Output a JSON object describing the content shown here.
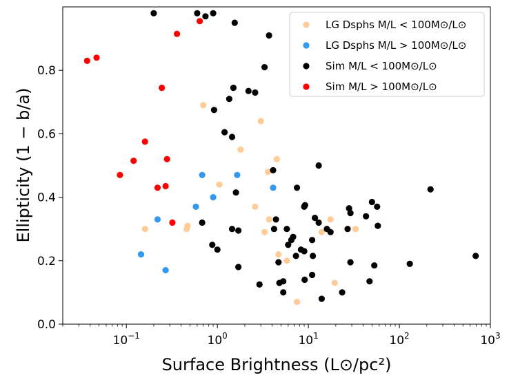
{
  "chart_data": {
    "type": "scatter",
    "xlabel": "Surface Brightness (L⊙/pc²)",
    "ylabel": "Ellipticity (1 − b/a)",
    "xscale": "log",
    "xlim": [
      0.02,
      1000
    ],
    "ylim": [
      0,
      1
    ],
    "x_ticks": [
      {
        "value": 0.1,
        "base": "10",
        "exp": "−1"
      },
      {
        "value": 1,
        "base": "10",
        "exp": "0"
      },
      {
        "value": 10,
        "base": "10",
        "exp": "1"
      },
      {
        "value": 100,
        "base": "10",
        "exp": "2"
      },
      {
        "value": 1000,
        "base": "10",
        "exp": "3"
      }
    ],
    "y_ticks": [
      {
        "value": 0.0,
        "label": "0.0"
      },
      {
        "value": 0.2,
        "label": "0.2"
      },
      {
        "value": 0.4,
        "label": "0.4"
      },
      {
        "value": 0.6,
        "label": "0.6"
      },
      {
        "value": 0.8,
        "label": "0.8"
      }
    ],
    "grid": false,
    "legend_position": "top-right",
    "series": [
      {
        "name": "LG Dsphs M/L < 100M⊙/L⊙",
        "color": "#ffcc99",
        "points": [
          [
            0.16,
            0.3
          ],
          [
            0.46,
            0.3
          ],
          [
            0.47,
            0.31
          ],
          [
            0.7,
            0.69
          ],
          [
            1.05,
            0.44
          ],
          [
            1.8,
            0.55
          ],
          [
            2.6,
            0.37
          ],
          [
            3.0,
            0.64
          ],
          [
            3.3,
            0.29
          ],
          [
            3.6,
            0.48
          ],
          [
            3.7,
            0.33
          ],
          [
            4.5,
            0.52
          ],
          [
            4.7,
            0.22
          ],
          [
            5.8,
            0.2
          ],
          [
            7.5,
            0.07
          ],
          [
            14,
            0.29
          ],
          [
            17.5,
            0.33
          ],
          [
            19.5,
            0.13
          ],
          [
            33,
            0.3
          ]
        ]
      },
      {
        "name": "LG Dsphs M/L > 100M⊙/L⊙",
        "color": "#3399ee",
        "points": [
          [
            0.145,
            0.22
          ],
          [
            0.22,
            0.33
          ],
          [
            0.27,
            0.17
          ],
          [
            0.58,
            0.37
          ],
          [
            0.68,
            0.47
          ],
          [
            0.9,
            0.4
          ],
          [
            1.65,
            0.47
          ],
          [
            4.1,
            0.43
          ]
        ]
      },
      {
        "name": "Sim M/L < 100M⊙/L⊙",
        "color": "#000000",
        "points": [
          [
            0.2,
            0.98
          ],
          [
            0.6,
            0.98
          ],
          [
            0.74,
            0.97
          ],
          [
            0.9,
            0.98
          ],
          [
            1.55,
            0.95
          ],
          [
            3.7,
            0.91
          ],
          [
            3.3,
            0.81
          ],
          [
            1.5,
            0.745
          ],
          [
            2.2,
            0.735
          ],
          [
            2.6,
            0.73
          ],
          [
            1.35,
            0.71
          ],
          [
            0.92,
            0.675
          ],
          [
            1.2,
            0.605
          ],
          [
            1.45,
            0.59
          ],
          [
            4.1,
            0.485
          ],
          [
            13,
            0.5
          ],
          [
            7.5,
            0.43
          ],
          [
            1.6,
            0.415
          ],
          [
            9,
            0.37
          ],
          [
            9.2,
            0.375
          ],
          [
            4.4,
            0.33
          ],
          [
            4.2,
            0.3
          ],
          [
            5.8,
            0.3
          ],
          [
            11.8,
            0.335
          ],
          [
            13,
            0.32
          ],
          [
            16,
            0.3
          ],
          [
            17.5,
            0.29
          ],
          [
            28,
            0.365
          ],
          [
            29,
            0.35
          ],
          [
            27,
            0.3
          ],
          [
            43,
            0.34
          ],
          [
            50,
            0.385
          ],
          [
            57,
            0.37
          ],
          [
            58,
            0.31
          ],
          [
            220,
            0.425
          ],
          [
            0.68,
            0.32
          ],
          [
            1.45,
            0.3
          ],
          [
            1.7,
            0.295
          ],
          [
            0.88,
            0.25
          ],
          [
            1.0,
            0.235
          ],
          [
            6.0,
            0.25
          ],
          [
            6.5,
            0.265
          ],
          [
            6.8,
            0.275
          ],
          [
            4.7,
            0.195
          ],
          [
            7.3,
            0.215
          ],
          [
            8.3,
            0.235
          ],
          [
            9.0,
            0.23
          ],
          [
            11,
            0.265
          ],
          [
            11.2,
            0.215
          ],
          [
            29,
            0.195
          ],
          [
            1.7,
            0.18
          ],
          [
            53,
            0.185
          ],
          [
            130,
            0.19
          ],
          [
            690,
            0.215
          ],
          [
            2.9,
            0.125
          ],
          [
            4.8,
            0.13
          ],
          [
            5.3,
            0.135
          ],
          [
            9.1,
            0.14
          ],
          [
            11,
            0.155
          ],
          [
            5.3,
            0.1
          ],
          [
            14,
            0.08
          ],
          [
            23.5,
            0.1
          ],
          [
            47,
            0.135
          ]
        ]
      },
      {
        "name": "Sim M/L > 100M⊙/L⊙",
        "color": "#ff0000",
        "points": [
          [
            0.037,
            0.83
          ],
          [
            0.047,
            0.84
          ],
          [
            0.36,
            0.915
          ],
          [
            0.64,
            0.955
          ],
          [
            0.245,
            0.745
          ],
          [
            0.16,
            0.575
          ],
          [
            0.12,
            0.515
          ],
          [
            0.085,
            0.47
          ],
          [
            0.28,
            0.52
          ],
          [
            0.22,
            0.43
          ],
          [
            0.27,
            0.435
          ],
          [
            0.32,
            0.32
          ]
        ]
      }
    ]
  }
}
